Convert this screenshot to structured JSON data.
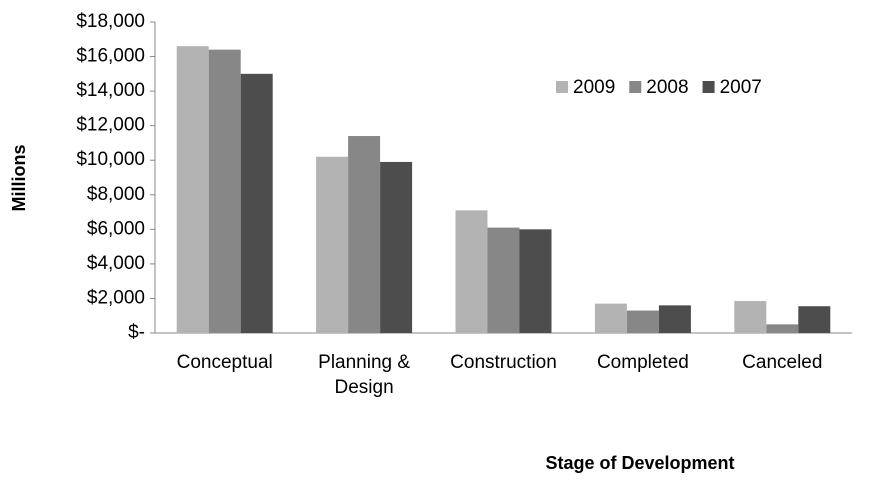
{
  "chart_data": {
    "type": "bar",
    "x_label": "Stage of Development",
    "y_label": "Millions",
    "categories": [
      "Conceptual",
      "Planning & Design",
      "Construction",
      "Completed",
      "Canceled"
    ],
    "series": [
      {
        "name": "2009",
        "color": "#b3b3b3",
        "values": [
          16600,
          10200,
          7100,
          1700,
          1850
        ]
      },
      {
        "name": "2008",
        "color": "#878787",
        "values": [
          16400,
          11400,
          6100,
          1300,
          500
        ]
      },
      {
        "name": "2007",
        "color": "#4d4d4d",
        "values": [
          15000,
          9900,
          6000,
          1600,
          1550
        ]
      }
    ],
    "ylim": [
      0,
      18000
    ],
    "yticks": [
      {
        "value": 0,
        "label": "$-"
      },
      {
        "value": 2000,
        "label": "$2,000"
      },
      {
        "value": 4000,
        "label": "$4,000"
      },
      {
        "value": 6000,
        "label": "$6,000"
      },
      {
        "value": 8000,
        "label": "$8,000"
      },
      {
        "value": 10000,
        "label": "$10,000"
      },
      {
        "value": 12000,
        "label": "$12,000"
      },
      {
        "value": 14000,
        "label": "$14,000"
      },
      {
        "value": 16000,
        "label": "$16,000"
      },
      {
        "value": 18000,
        "label": "$18,000"
      }
    ],
    "grid": false,
    "legend": "top-right"
  }
}
